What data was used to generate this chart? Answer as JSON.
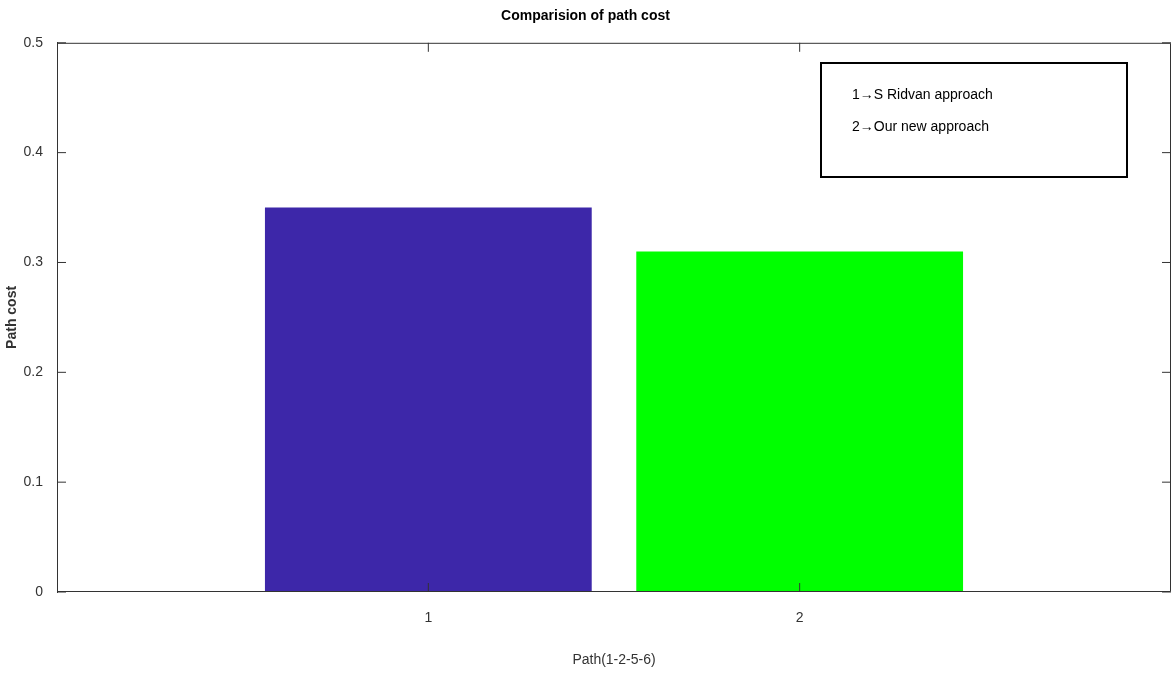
{
  "chart_data": {
    "type": "bar",
    "title": "Comparision of path cost",
    "xlabel": "Path(1-2-5-6)",
    "ylabel": "Path cost",
    "categories": [
      "1",
      "2"
    ],
    "values": [
      0.35,
      0.31
    ],
    "colors": [
      "#3d27a9",
      "#00ff00"
    ],
    "ylim": [
      0,
      0.5
    ],
    "yticks": [
      0,
      0.1,
      0.2,
      0.3,
      0.4,
      0.5
    ],
    "annotations": [
      "1→S Ridvan approach",
      "2→Our new approach"
    ]
  }
}
